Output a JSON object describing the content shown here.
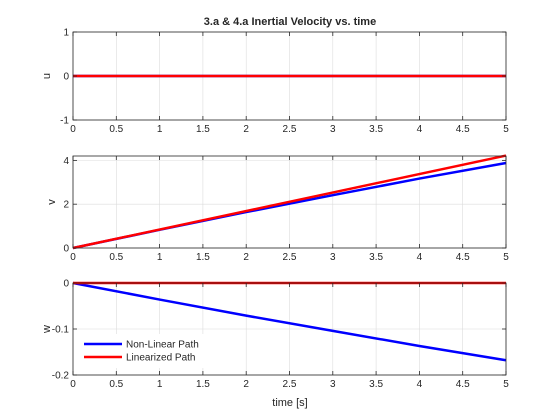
{
  "figure": {
    "title": "3.a & 4.a Inertial Velocity vs. time",
    "xlabel": "time [s]"
  },
  "legend": {
    "location": "lower-left of bottom subplot",
    "entries": [
      {
        "label": "Non-Linear Path",
        "color": "#0000ff"
      },
      {
        "label": "Linearized Path",
        "color": "#ff0000"
      }
    ]
  },
  "chart_data": [
    {
      "type": "line",
      "title": "3.a & 4.a Inertial Velocity vs. time",
      "xlabel": "",
      "ylabel": "u",
      "xlim": [
        0,
        5
      ],
      "ylim": [
        -1,
        1
      ],
      "xticks": [
        "0",
        "0.5",
        "1",
        "1.5",
        "2",
        "2.5",
        "3",
        "3.5",
        "4",
        "4.5",
        "5"
      ],
      "xtick_values": [
        0,
        0.5,
        1,
        1.5,
        2,
        2.5,
        3,
        3.5,
        4,
        4.5,
        5
      ],
      "yticks": [
        "-1",
        "0",
        "1"
      ],
      "ytick_values": [
        -1,
        0,
        1
      ],
      "grid": true,
      "series": [
        {
          "name": "Non-Linear Path",
          "color": "#0000ff",
          "x": [
            0,
            5
          ],
          "y": [
            0,
            0
          ]
        },
        {
          "name": "Linearized Path",
          "color": "#ff0000",
          "x": [
            0,
            5
          ],
          "y": [
            0,
            0
          ]
        }
      ]
    },
    {
      "type": "line",
      "title": "",
      "xlabel": "",
      "ylabel": "v",
      "xlim": [
        0,
        5
      ],
      "ylim": [
        0,
        4.2
      ],
      "xticks": [
        "0",
        "0.5",
        "1",
        "1.5",
        "2",
        "2.5",
        "3",
        "3.5",
        "4",
        "4.5",
        "5"
      ],
      "xtick_values": [
        0,
        0.5,
        1,
        1.5,
        2,
        2.5,
        3,
        3.5,
        4,
        4.5,
        5
      ],
      "yticks": [
        "0",
        "2",
        "4"
      ],
      "ytick_values": [
        0,
        2,
        4
      ],
      "grid": true,
      "series": [
        {
          "name": "Non-Linear Path",
          "color": "#0000ff",
          "x": [
            0,
            1,
            2,
            3,
            4,
            5
          ],
          "y": [
            0,
            0.83,
            1.64,
            2.41,
            3.17,
            3.88
          ]
        },
        {
          "name": "Linearized Path",
          "color": "#ff0000",
          "x": [
            0,
            5
          ],
          "y": [
            0,
            4.22
          ]
        }
      ]
    },
    {
      "type": "line",
      "title": "",
      "xlabel": "time [s]",
      "ylabel": "w",
      "xlim": [
        0,
        5
      ],
      "ylim": [
        -0.2,
        0
      ],
      "xticks": [
        "0",
        "0.5",
        "1",
        "1.5",
        "2",
        "2.5",
        "3",
        "3.5",
        "4",
        "4.5",
        "5"
      ],
      "xtick_values": [
        0,
        0.5,
        1,
        1.5,
        2,
        2.5,
        3,
        3.5,
        4,
        4.5,
        5
      ],
      "yticks": [
        "-0.2",
        "-0.1",
        "0"
      ],
      "ytick_values": [
        -0.2,
        -0.1,
        0
      ],
      "grid": true,
      "series": [
        {
          "name": "Non-Linear Path",
          "color": "#0000ff",
          "x": [
            0,
            1,
            2,
            3,
            4,
            5
          ],
          "y": [
            0,
            -0.036,
            -0.071,
            -0.104,
            -0.137,
            -0.168
          ]
        },
        {
          "name": "Linearized Path",
          "color": "#ff0000",
          "x": [
            0,
            5
          ],
          "y": [
            0,
            0
          ]
        }
      ]
    }
  ]
}
